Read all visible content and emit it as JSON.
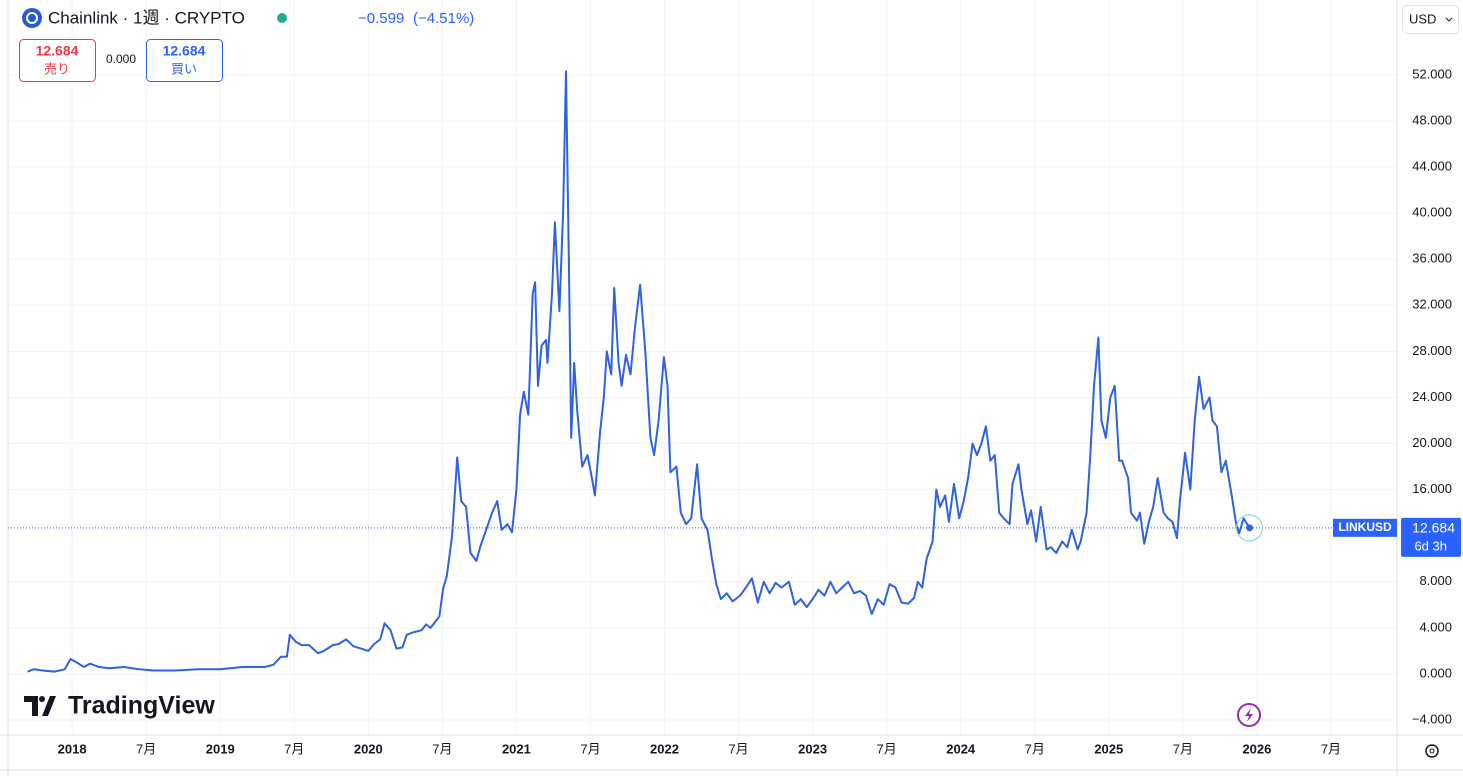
{
  "header": {
    "title": "Chainlink · 1週 · CRYPTO",
    "change": "−0.599",
    "change_percent": "(−4.51%)",
    "currency": "USD"
  },
  "trade": {
    "bid": 12.684,
    "bid_label": "売り",
    "spread": "0.000",
    "ask": 12.684,
    "ask_label": "買い"
  },
  "brand": "TradingView",
  "chart_data": {
    "type": "line",
    "symbol": "LINKUSD",
    "countdown": "6d 3h",
    "grid": true,
    "xlim": [
      2017.567,
      2026.946
    ],
    "ylim": [
      -5.3,
      58.5
    ],
    "xticks": [
      {
        "value": 2018,
        "label": "2018"
      },
      {
        "value": 2018.5,
        "label": "7月"
      },
      {
        "value": 2019,
        "label": "2019"
      },
      {
        "value": 2019.5,
        "label": "7月"
      },
      {
        "value": 2020,
        "label": "2020"
      },
      {
        "value": 2020.5,
        "label": "7月"
      },
      {
        "value": 2021,
        "label": "2021"
      },
      {
        "value": 2021.5,
        "label": "7月"
      },
      {
        "value": 2022,
        "label": "2022"
      },
      {
        "value": 2022.5,
        "label": "7月"
      },
      {
        "value": 2023,
        "label": "2023"
      },
      {
        "value": 2023.5,
        "label": "7月"
      },
      {
        "value": 2024,
        "label": "2024"
      },
      {
        "value": 2024.5,
        "label": "7月"
      },
      {
        "value": 2025,
        "label": "2025"
      },
      {
        "value": 2025.5,
        "label": "7月"
      },
      {
        "value": 2026,
        "label": "2026"
      },
      {
        "value": 2026.5,
        "label": "7月"
      }
    ],
    "yticks": [
      {
        "value": -4,
        "label": "−4.000"
      },
      {
        "value": 0,
        "label": "0.000"
      },
      {
        "value": 4,
        "label": "4.000"
      },
      {
        "value": 8,
        "label": "8.000"
      },
      {
        "value": 12,
        "label": "12.000"
      },
      {
        "value": 16,
        "label": "16.000"
      },
      {
        "value": 20,
        "label": "20.000"
      },
      {
        "value": 24,
        "label": "24.000"
      },
      {
        "value": 28,
        "label": "28.000"
      },
      {
        "value": 32,
        "label": "32.000"
      },
      {
        "value": 36,
        "label": "36.000"
      },
      {
        "value": 40,
        "label": "40.000"
      },
      {
        "value": 44,
        "label": "44.000"
      },
      {
        "value": 48,
        "label": "48.000"
      },
      {
        "value": 52,
        "label": "52.000"
      }
    ],
    "series": [
      {
        "name": "LINKUSD",
        "color": "#2f62e0",
        "x": [
          2017.7,
          2017.74,
          2017.8,
          2017.88,
          2017.95,
          2017.99,
          2018.03,
          2018.08,
          2018.12,
          2018.18,
          2018.25,
          2018.35,
          2018.45,
          2018.55,
          2018.7,
          2018.85,
          2019.0,
          2019.15,
          2019.3,
          2019.36,
          2019.41,
          2019.45,
          2019.47,
          2019.51,
          2019.55,
          2019.6,
          2019.66,
          2019.7,
          2019.76,
          2019.8,
          2019.85,
          2019.9,
          2019.95,
          2020.0,
          2020.04,
          2020.08,
          2020.11,
          2020.15,
          2020.19,
          2020.23,
          2020.26,
          2020.3,
          2020.36,
          2020.39,
          2020.42,
          2020.45,
          2020.48,
          2020.505,
          2020.53,
          2020.566,
          2020.6,
          2020.627,
          2020.66,
          2020.69,
          2020.73,
          2020.755,
          2020.795,
          2020.836,
          2020.87,
          2020.9,
          2020.94,
          2020.97,
          2021.0,
          2021.025,
          2021.05,
          2021.08,
          2021.11,
          2021.126,
          2021.146,
          2021.17,
          2021.2,
          2021.21,
          2021.24,
          2021.26,
          2021.29,
          2021.315,
          2021.335,
          2021.355,
          2021.37,
          2021.39,
          2021.41,
          2021.444,
          2021.48,
          2021.51,
          2021.53,
          2021.565,
          2021.59,
          2021.61,
          2021.64,
          2021.66,
          2021.69,
          2021.71,
          2021.74,
          2021.77,
          2021.8,
          2021.835,
          2021.87,
          2021.905,
          2021.93,
          2021.96,
          2021.996,
          2022.02,
          2022.04,
          2022.08,
          2022.11,
          2022.145,
          2022.18,
          2022.22,
          2022.25,
          2022.29,
          2022.32,
          2022.35,
          2022.38,
          2022.42,
          2022.46,
          2022.51,
          2022.55,
          2022.59,
          2022.63,
          2022.67,
          2022.71,
          2022.75,
          2022.79,
          2022.84,
          2022.88,
          2022.92,
          2022.96,
          2023.0,
          2023.04,
          2023.08,
          2023.12,
          2023.16,
          2023.2,
          2023.24,
          2023.28,
          2023.32,
          2023.36,
          2023.4,
          2023.44,
          2023.48,
          2023.52,
          2023.56,
          2023.6,
          2023.645,
          2023.685,
          2023.71,
          2023.74,
          2023.77,
          2023.81,
          2023.835,
          2023.86,
          2023.895,
          2023.92,
          2023.955,
          2023.99,
          2024.02,
          2024.05,
          2024.08,
          2024.11,
          2024.14,
          2024.17,
          2024.2,
          2024.23,
          2024.26,
          2024.29,
          2024.33,
          2024.35,
          2024.39,
          2024.41,
          2024.45,
          2024.475,
          2024.51,
          2024.54,
          2024.58,
          2024.61,
          2024.645,
          2024.685,
          2024.72,
          2024.75,
          2024.79,
          2024.81,
          2024.85,
          2024.875,
          2024.9,
          2024.93,
          2024.95,
          2024.98,
          2025.01,
          2025.04,
          2025.07,
          2025.09,
          2025.13,
          2025.15,
          2025.19,
          2025.21,
          2025.24,
          2025.27,
          2025.3,
          2025.33,
          2025.37,
          2025.4,
          2025.43,
          2025.46,
          2025.48,
          2025.515,
          2025.55,
          2025.58,
          2025.61,
          2025.64,
          2025.68,
          2025.7,
          2025.73,
          2025.76,
          2025.79,
          2025.83,
          2025.86,
          2025.88,
          2025.91,
          2025.95
        ],
        "values": [
          0.2,
          0.4,
          0.3,
          0.2,
          0.4,
          1.3,
          1.0,
          0.6,
          0.9,
          0.6,
          0.5,
          0.6,
          0.4,
          0.3,
          0.3,
          0.4,
          0.4,
          0.6,
          0.6,
          0.8,
          1.5,
          1.5,
          3.4,
          2.8,
          2.5,
          2.5,
          1.8,
          2.0,
          2.5,
          2.6,
          3.0,
          2.4,
          2.2,
          2.0,
          2.6,
          3.0,
          4.4,
          3.8,
          2.2,
          2.3,
          3.4,
          3.6,
          3.8,
          4.3,
          4.0,
          4.5,
          5.0,
          7.4,
          8.5,
          12,
          18.8,
          15,
          14.5,
          10.5,
          9.8,
          11,
          12.5,
          14,
          15,
          12.5,
          13,
          12.3,
          16,
          22.5,
          24.5,
          22.5,
          33,
          34,
          25,
          28.5,
          29,
          27,
          33,
          39.2,
          31.5,
          40,
          52.3,
          35,
          20.5,
          27,
          23,
          18,
          19,
          17,
          15.5,
          21,
          24,
          28,
          26,
          33.5,
          27,
          25,
          27.7,
          26,
          30,
          33.8,
          28,
          20.5,
          19,
          22,
          27.5,
          25,
          17.5,
          18,
          14,
          13,
          13.5,
          18.2,
          13.5,
          12.5,
          10,
          7.8,
          6.5,
          7,
          6.3,
          6.8,
          7.5,
          8.3,
          6.2,
          8,
          7,
          7.9,
          7.5,
          8,
          6,
          6.5,
          5.8,
          6.5,
          7.3,
          6.8,
          8,
          7,
          7.5,
          8,
          7,
          7.2,
          6.8,
          5.2,
          6.5,
          6,
          7.8,
          7.5,
          6.2,
          6.1,
          6.6,
          8,
          7.5,
          10,
          11.5,
          16,
          14.5,
          15.5,
          13.2,
          16.5,
          13.5,
          15,
          17,
          20,
          19,
          20,
          21.5,
          18.5,
          19,
          14,
          13.5,
          13,
          16.5,
          18.2,
          16,
          13,
          14.2,
          11.5,
          14.5,
          10.8,
          11,
          10.5,
          11.5,
          11,
          12.5,
          10.8,
          11.5,
          14,
          19,
          25,
          29.2,
          22,
          20.5,
          24,
          25,
          18.5,
          18.5,
          17,
          14,
          13.3,
          14,
          11.3,
          13.2,
          14.5,
          17,
          14,
          13.5,
          13.2,
          11.8,
          15,
          19.2,
          16,
          22,
          25.8,
          23,
          24,
          22,
          21.5,
          17.5,
          18.5,
          15.5,
          13,
          12.2,
          13.5,
          12.684
        ]
      }
    ]
  }
}
